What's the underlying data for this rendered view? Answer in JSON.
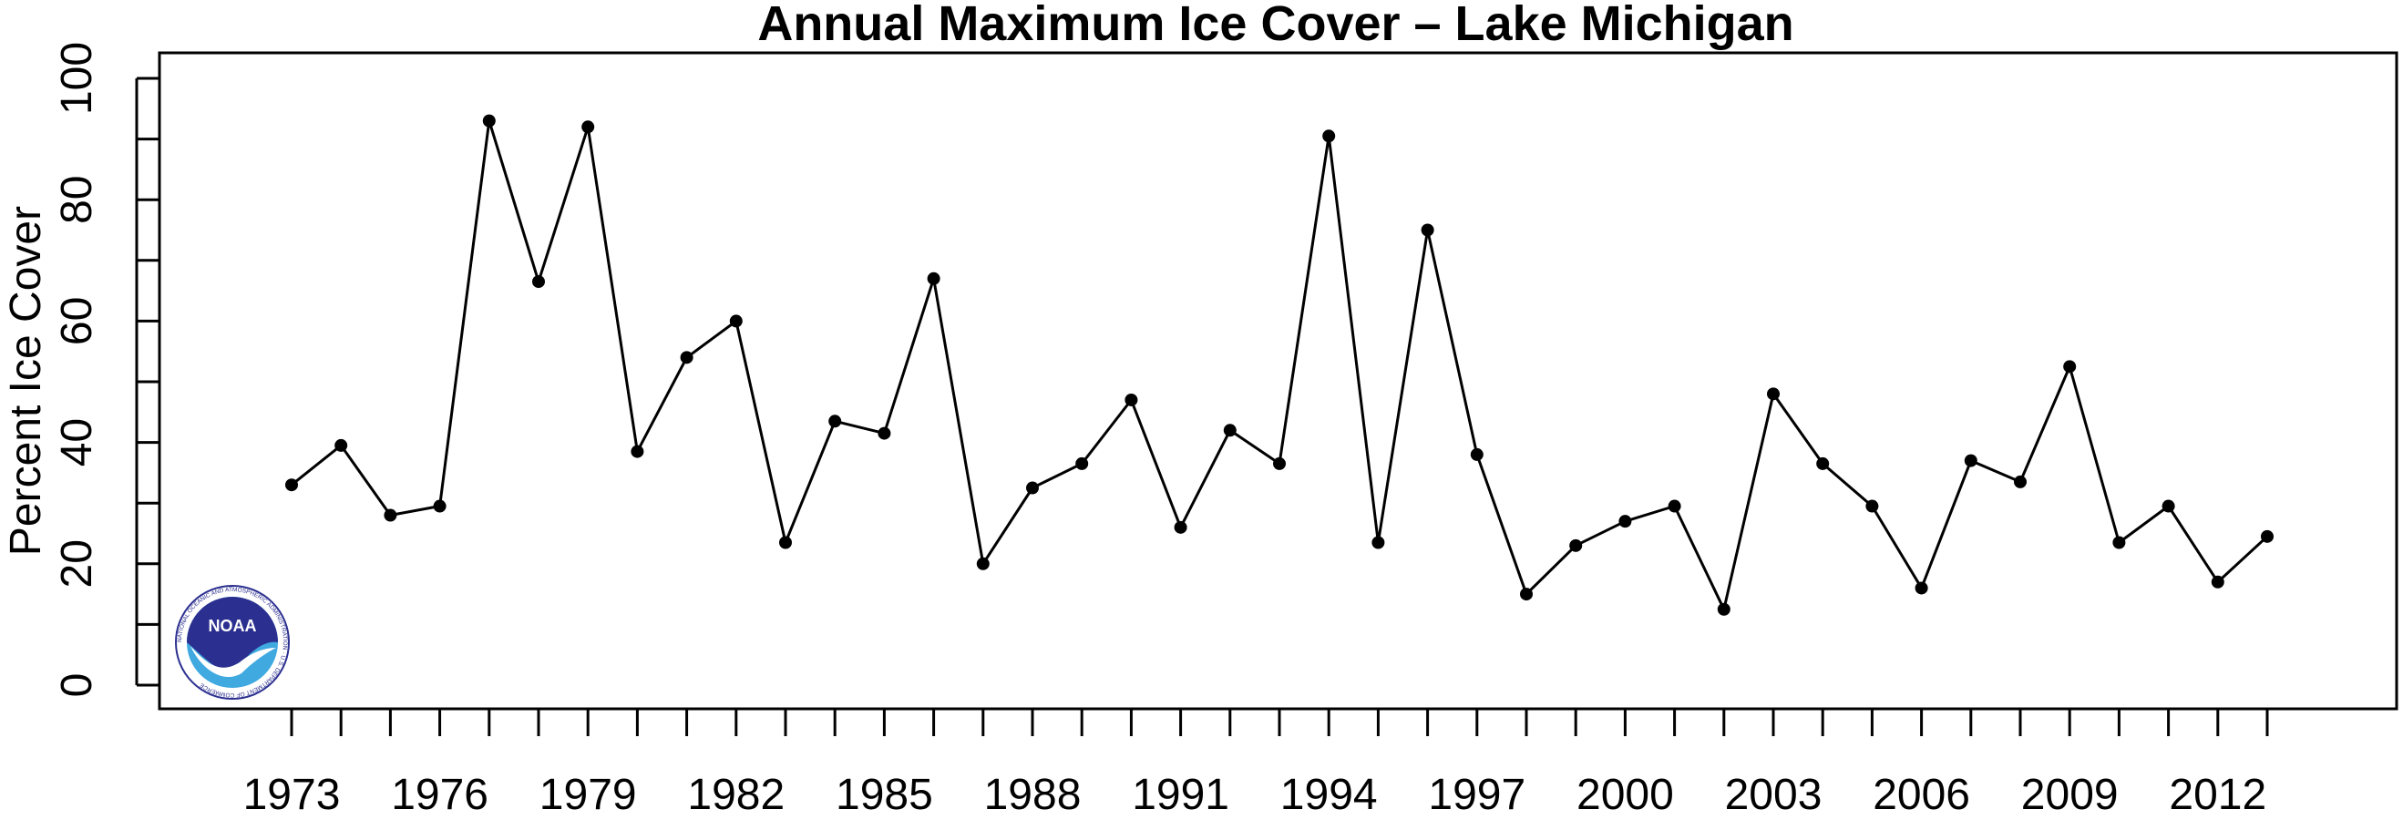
{
  "colors": {
    "background": "#ffffff",
    "line": "#000000",
    "noaa_dark_blue": "#2b2f8f",
    "noaa_light_blue": "#3fa9e0"
  },
  "logo": {
    "icon": "noaa-logo-icon",
    "text": "NOAA",
    "ring_text": "NATIONAL OCEANIC AND ATMOSPHERIC ADMINISTRATION · U.S. DEPARTMENT OF COMMERCE"
  },
  "chart_data": {
    "type": "line",
    "title": "Annual Maximum Ice Cover – Lake Michigan",
    "xlabel": "",
    "ylabel": "Percent Ice Cover",
    "xlim": [
      1969,
      2015
    ],
    "ylim": [
      0,
      100
    ],
    "grid": false,
    "legend": "none",
    "x_tick_labels": [
      "1973",
      "1976",
      "1979",
      "1982",
      "1985",
      "1988",
      "1991",
      "1994",
      "1997",
      "2000",
      "2003",
      "2006",
      "2009",
      "2012"
    ],
    "x_minor_ticks": [
      1973,
      1974,
      1975,
      1976,
      1977,
      1978,
      1979,
      1980,
      1981,
      1982,
      1983,
      1984,
      1985,
      1986,
      1987,
      1988,
      1989,
      1990,
      1991,
      1992,
      1993,
      1994,
      1995,
      1996,
      1997,
      1998,
      1999,
      2000,
      2001,
      2002,
      2003,
      2004,
      2005,
      2006,
      2007,
      2008,
      2009,
      2010,
      2011,
      2012,
      2013
    ],
    "y_tick_labels": [
      "0",
      "20",
      "40",
      "60",
      "80",
      "100"
    ],
    "y_minor_ticks": [
      0,
      10,
      20,
      30,
      40,
      50,
      60,
      70,
      80,
      90,
      100
    ],
    "x": [
      1973,
      1974,
      1975,
      1976,
      1977,
      1978,
      1979,
      1980,
      1981,
      1982,
      1983,
      1984,
      1985,
      1986,
      1987,
      1988,
      1989,
      1990,
      1991,
      1992,
      1993,
      1994,
      1995,
      1996,
      1997,
      1998,
      1999,
      2000,
      2001,
      2002,
      2003,
      2004,
      2005,
      2006,
      2007,
      2008,
      2009,
      2010,
      2011,
      2012,
      2013
    ],
    "series": [
      {
        "values": [
          33,
          39.5,
          28,
          29.5,
          93,
          66.5,
          92,
          38.5,
          54,
          60,
          23.5,
          43.5,
          41.5,
          67,
          20,
          32.5,
          36.5,
          47,
          26,
          42,
          36.5,
          90.5,
          23.5,
          75,
          38,
          15,
          23,
          27,
          29.5,
          12.5,
          48,
          36.5,
          29.5,
          16,
          37,
          33.5,
          52.5,
          23.5,
          29.5,
          17,
          24.5
        ]
      }
    ]
  }
}
